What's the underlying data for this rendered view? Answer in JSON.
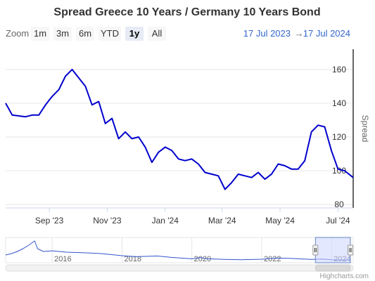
{
  "range_selector": {
    "zoom_label": "Zoom",
    "buttons": [
      {
        "label": "1m",
        "active": false
      },
      {
        "label": "3m",
        "active": false
      },
      {
        "label": "6m",
        "active": false
      },
      {
        "label": "YTD",
        "active": false
      },
      {
        "label": "1y",
        "active": true
      },
      {
        "label": "All",
        "active": false
      }
    ],
    "from": "17 Jul 2023",
    "arrow": "→",
    "to": "17 Jul 2024"
  },
  "credits": "Highcharts.com",
  "colors": {
    "series": "#0000cc",
    "link": "#3366cc",
    "navigator_mask": "#ccd6ff",
    "navigator_border": "#6685c2"
  },
  "chart_data": {
    "type": "line",
    "title": "Spread Greece 10 Years / Germany 10 Years Bond",
    "ylabel": "Spread",
    "ylim": [
      78,
      172
    ],
    "yticks": [
      80,
      100,
      120,
      140,
      160
    ],
    "xlim": [
      "2023-07-17",
      "2024-07-17"
    ],
    "xticks": [
      {
        "label": "Sep '23",
        "date": "2023-09-01"
      },
      {
        "label": "Nov '23",
        "date": "2023-11-01"
      },
      {
        "label": "Jan '24",
        "date": "2024-01-01"
      },
      {
        "label": "Mar '24",
        "date": "2024-03-01"
      },
      {
        "label": "May '24",
        "date": "2024-05-01"
      },
      {
        "label": "Jul '24",
        "date": "2024-07-01"
      }
    ],
    "grid": true,
    "series": [
      {
        "x": [
          "2023-07-17",
          "2023-07-24",
          "2023-08-07",
          "2023-08-14",
          "2023-08-21",
          "2023-08-28",
          "2023-09-04",
          "2023-09-11",
          "2023-09-18",
          "2023-09-25",
          "2023-10-02",
          "2023-10-09",
          "2023-10-16",
          "2023-10-23",
          "2023-10-30",
          "2023-11-06",
          "2023-11-13",
          "2023-11-20",
          "2023-11-27",
          "2023-12-04",
          "2023-12-11",
          "2023-12-18",
          "2023-12-25",
          "2024-01-01",
          "2024-01-08",
          "2024-01-15",
          "2024-01-22",
          "2024-01-29",
          "2024-02-05",
          "2024-02-12",
          "2024-02-19",
          "2024-02-26",
          "2024-03-04",
          "2024-03-11",
          "2024-03-18",
          "2024-03-25",
          "2024-04-01",
          "2024-04-08",
          "2024-04-15",
          "2024-04-22",
          "2024-04-29",
          "2024-05-06",
          "2024-05-13",
          "2024-05-20",
          "2024-05-27",
          "2024-06-03",
          "2024-06-10",
          "2024-06-17",
          "2024-06-24",
          "2024-07-01",
          "2024-07-08",
          "2024-07-17"
        ],
        "y": [
          140,
          133,
          132,
          133,
          133,
          139,
          144,
          148,
          156,
          160,
          155,
          150,
          139,
          141,
          128,
          131,
          119,
          123,
          119,
          120,
          114,
          105,
          111,
          114,
          112,
          107,
          106,
          107,
          104,
          99,
          98,
          97,
          89,
          93,
          98,
          97,
          96,
          99,
          95,
          98,
          104,
          103,
          101,
          101,
          106,
          123,
          127,
          126,
          112,
          101,
          100,
          96
        ]
      }
    ]
  },
  "navigator": {
    "year_labels": [
      {
        "label": "2016",
        "date": "2016-01-01"
      },
      {
        "label": "2018",
        "date": "2018-01-01"
      },
      {
        "label": "2020",
        "date": "2020-01-01"
      },
      {
        "label": "2022",
        "date": "2022-01-01"
      },
      {
        "label": "2024",
        "date": "2024-01-01"
      }
    ],
    "series_x": [
      "2014-09-01",
      "2014-11-01",
      "2015-01-01",
      "2015-03-01",
      "2015-05-01",
      "2015-07-01",
      "2015-08-01",
      "2015-10-01",
      "2016-01-01",
      "2016-06-01",
      "2017-01-01",
      "2017-06-01",
      "2018-01-01",
      "2018-06-01",
      "2019-01-01",
      "2019-06-01",
      "2020-01-01",
      "2020-04-01",
      "2020-06-01",
      "2021-01-01",
      "2021-06-01",
      "2022-01-01",
      "2022-06-01",
      "2022-10-01",
      "2023-01-01",
      "2023-06-01",
      "2023-10-01",
      "2024-01-01",
      "2024-04-01",
      "2024-07-17"
    ],
    "series_y": [
      450,
      550,
      700,
      900,
      1150,
      1450,
      900,
      700,
      750,
      650,
      600,
      550,
      400,
      330,
      380,
      280,
      180,
      260,
      190,
      130,
      110,
      150,
      230,
      220,
      190,
      140,
      160,
      110,
      95,
      96
    ],
    "ylim": [
      0,
      1600
    ],
    "xlim": [
      "2014-09-01",
      "2024-08-15"
    ]
  }
}
